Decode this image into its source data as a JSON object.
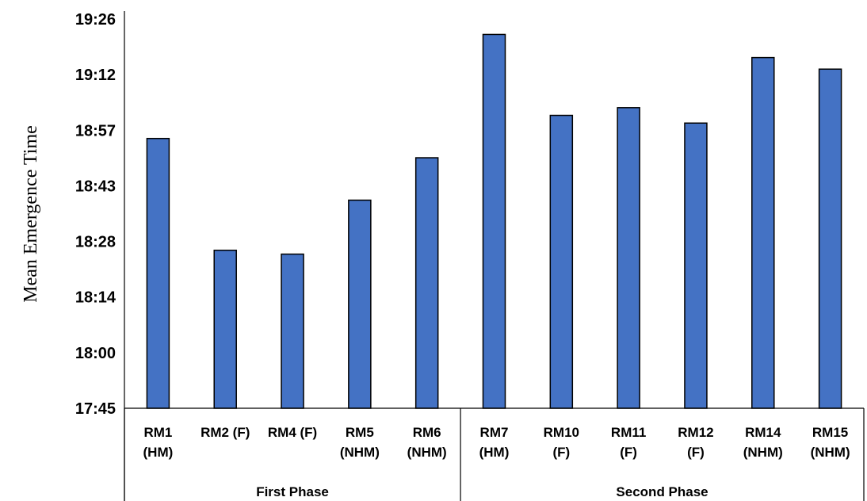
{
  "chart_data": {
    "type": "bar",
    "title": "",
    "ylabel": "Mean Emergence Time",
    "xlabel": "",
    "y_unit": "minutes after 17:45",
    "y_ticks": [
      "17:45",
      "18:00",
      "18:14",
      "18:28",
      "18:43",
      "18:57",
      "19:12",
      "19:26"
    ],
    "ylim_labels": [
      "17:45",
      "19:26"
    ],
    "categories": [
      [
        "RM1",
        "(HM)"
      ],
      [
        "RM2 (F)"
      ],
      [
        "RM4 (F)"
      ],
      [
        "RM5",
        "(NHM)"
      ],
      [
        "RM6",
        "(NHM)"
      ],
      [
        "RM7",
        "(HM)"
      ],
      [
        "RM10",
        "(F)"
      ],
      [
        "RM11",
        "(F)"
      ],
      [
        "RM12",
        "(F)"
      ],
      [
        "RM14",
        "(NHM)"
      ],
      [
        "RM15",
        "(NHM)"
      ]
    ],
    "values": [
      "18:55",
      "18:26",
      "18:25",
      "18:39",
      "18:50",
      "19:22",
      "19:01",
      "19:03",
      "18:59",
      "19:16",
      "19:13"
    ],
    "groups": [
      {
        "name": "First Phase",
        "start": 0,
        "end": 4
      },
      {
        "name": "Second Phase",
        "start": 5,
        "end": 10
      }
    ],
    "bar_color": "#4472C4",
    "grid": false,
    "legend": "none"
  }
}
